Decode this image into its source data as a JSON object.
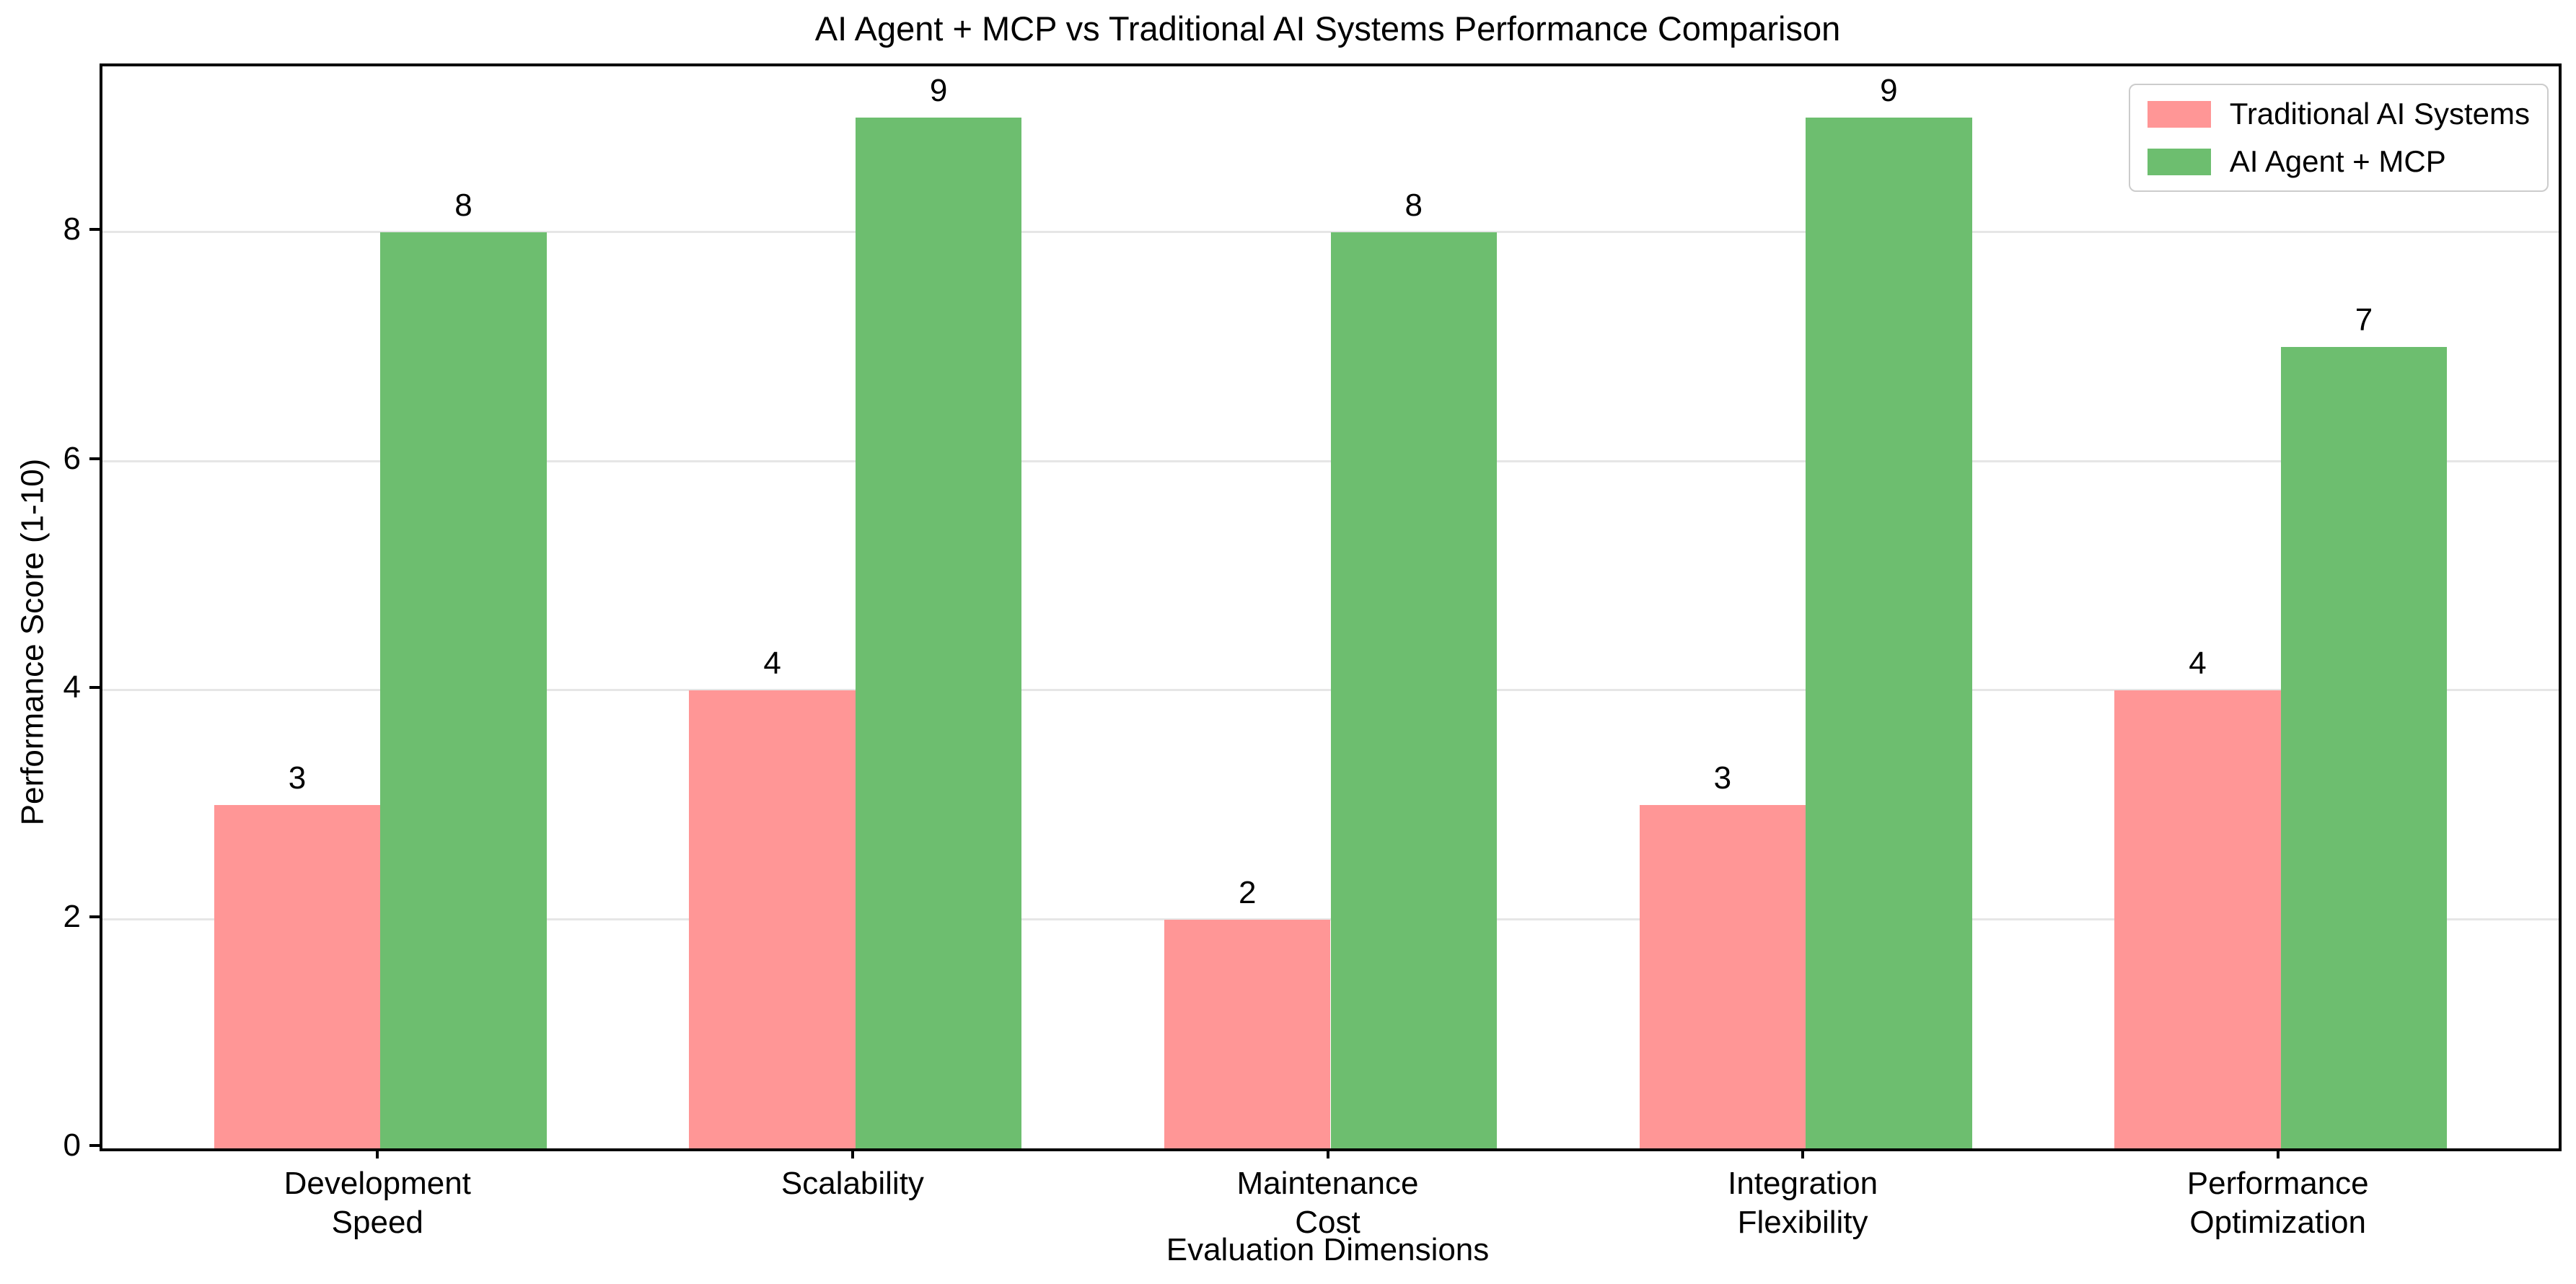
{
  "chart_data": {
    "type": "bar",
    "title": "AI Agent + MCP vs Traditional AI Systems Performance Comparison",
    "xlabel": "Evaluation Dimensions",
    "ylabel": "Performance Score (1-10)",
    "categories": [
      "Development\nSpeed",
      "Scalability",
      "Maintenance\nCost",
      "Integration\nFlexibility",
      "Performance\nOptimization"
    ],
    "series": [
      {
        "name": "Traditional AI Systems",
        "color": "#FF9696",
        "values": [
          3,
          4,
          2,
          3,
          4
        ]
      },
      {
        "name": "AI Agent + MCP",
        "color": "#6DBE6F",
        "values": [
          8,
          9,
          8,
          9,
          7
        ]
      }
    ],
    "bar_labels": true,
    "yticks": [
      0,
      2,
      4,
      6,
      8
    ],
    "ylim": [
      0,
      9.45
    ],
    "xlim": [
      -0.585,
      4.585
    ],
    "bar_width_units": 0.35,
    "grid": "horizontal",
    "gridline_color": "#e6e6e6",
    "legend_position": "upper right",
    "text_color": "#000000",
    "background_color": "#ffffff"
  }
}
